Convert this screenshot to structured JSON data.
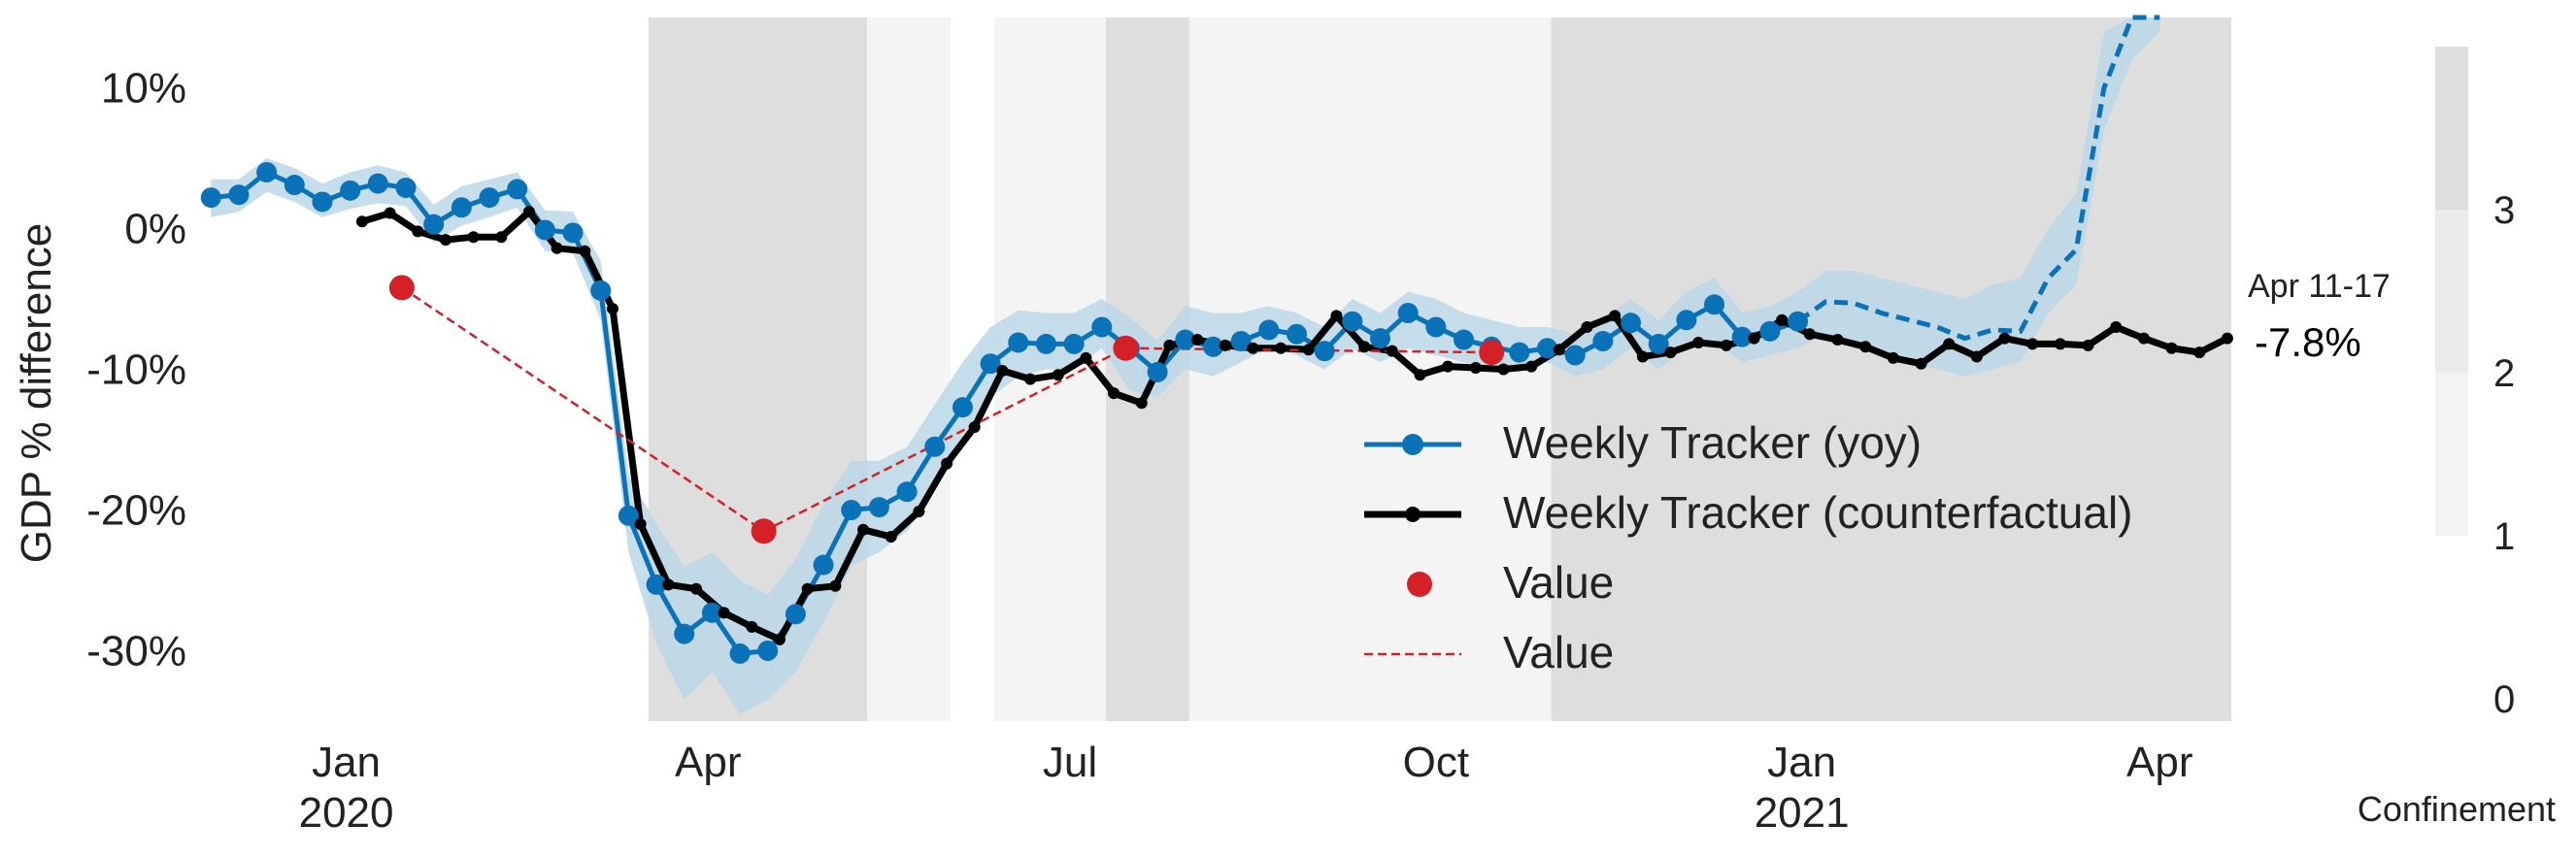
{
  "chart_data": {
    "type": "line",
    "title": "",
    "xlabel": "",
    "ylabel": "GDP % difference",
    "ylim": [
      -35,
      15
    ],
    "xlim": [
      "2019-11-25",
      "2021-04-19"
    ],
    "y_ticks": [
      {
        "value": 10,
        "label": "10%"
      },
      {
        "value": 0,
        "label": "0%"
      },
      {
        "value": -10,
        "label": "-10%"
      },
      {
        "value": -20,
        "label": "-20%"
      },
      {
        "value": -30,
        "label": "-30%"
      }
    ],
    "x_ticks": [
      {
        "date": "2020-01-01",
        "label": "Jan",
        "year": "2020"
      },
      {
        "date": "2020-04-01",
        "label": "Apr",
        "year": ""
      },
      {
        "date": "2020-07-01",
        "label": "Jul",
        "year": ""
      },
      {
        "date": "2020-10-01",
        "label": "Oct",
        "year": ""
      },
      {
        "date": "2021-01-01",
        "label": "Jan",
        "year": "2021"
      },
      {
        "date": "2021-04-01",
        "label": "Apr",
        "year": ""
      }
    ],
    "grid": false,
    "legend": {
      "position": "lower-right",
      "entries": [
        {
          "label": "Weekly Tracker (yoy)",
          "style": "line-marker",
          "color": "#0a72b8"
        },
        {
          "label": "Weekly Tracker (counterfactual)",
          "style": "line-marker",
          "color": "#000000"
        },
        {
          "label": "Value",
          "style": "marker",
          "color": "#d62028"
        },
        {
          "label": "Value",
          "style": "dashed-line",
          "color": "#d62028"
        }
      ]
    },
    "annotation": {
      "date_label": "Apr 11-17",
      "value_label": "-7.8%"
    },
    "confinement": {
      "label": "Confinement",
      "ticks": [
        {
          "value": 0,
          "label": "0"
        },
        {
          "value": 1,
          "label": "1"
        },
        {
          "value": 2,
          "label": "2"
        },
        {
          "value": 3,
          "label": "3"
        }
      ],
      "levels": [
        {
          "from": 1,
          "to": 2,
          "color": "#f4f4f4"
        },
        {
          "from": 2,
          "to": 3,
          "color": "#eaeaea"
        },
        {
          "from": 3,
          "to": 4,
          "color": "#dedede"
        }
      ],
      "periods": [
        {
          "start": "2020-03-17",
          "end": "2020-05-11",
          "level": 3
        },
        {
          "start": "2020-05-11",
          "end": "2020-06-01",
          "level": 1
        },
        {
          "start": "2020-06-12",
          "end": "2020-07-10",
          "level": 1
        },
        {
          "start": "2020-07-10",
          "end": "2020-07-31",
          "level": 3
        },
        {
          "start": "2020-07-31",
          "end": "2020-10-30",
          "level": 1
        },
        {
          "start": "2020-10-30",
          "end": "2021-04-19",
          "level": 3
        }
      ]
    },
    "series": [
      {
        "name": "Weekly Tracker (yoy)",
        "color": "#0a72b8",
        "x": [
          "2019-11-28",
          "2019-12-05",
          "2019-12-12",
          "2019-12-19",
          "2019-12-26",
          "2020-01-02",
          "2020-01-09",
          "2020-01-16",
          "2020-01-23",
          "2020-01-30",
          "2020-02-06",
          "2020-02-13",
          "2020-02-20",
          "2020-02-27",
          "2020-03-05",
          "2020-03-12",
          "2020-03-19",
          "2020-03-26",
          "2020-04-02",
          "2020-04-09",
          "2020-04-16",
          "2020-04-23",
          "2020-04-30",
          "2020-05-07",
          "2020-05-14",
          "2020-05-21",
          "2020-05-28",
          "2020-06-04",
          "2020-06-11",
          "2020-06-18",
          "2020-06-25",
          "2020-07-02",
          "2020-07-09",
          "2020-07-16",
          "2020-07-23",
          "2020-07-30",
          "2020-08-06",
          "2020-08-13",
          "2020-08-20",
          "2020-08-27",
          "2020-09-03",
          "2020-09-10",
          "2020-09-17",
          "2020-09-24",
          "2020-10-01",
          "2020-10-08",
          "2020-10-15",
          "2020-10-22",
          "2020-10-29",
          "2020-11-05",
          "2020-11-12",
          "2020-11-19",
          "2020-11-26",
          "2020-12-03",
          "2020-12-10",
          "2020-12-17",
          "2020-12-24",
          "2020-12-31"
        ],
        "values": [
          2.2,
          2.4,
          4.0,
          3.1,
          1.9,
          2.7,
          3.2,
          2.9,
          0.3,
          1.5,
          2.2,
          2.8,
          -0.1,
          -0.3,
          -4.4,
          -20.4,
          -25.3,
          -28.8,
          -27.3,
          -30.2,
          -30.0,
          -27.4,
          -23.9,
          -20.0,
          -19.8,
          -18.7,
          -15.5,
          -12.7,
          -9.6,
          -8.1,
          -8.2,
          -8.2,
          -7.0,
          -8.5,
          -10.2,
          -7.9,
          -8.4,
          -8.0,
          -7.2,
          -7.5,
          -8.7,
          -6.6,
          -7.8,
          -6.0,
          -7.0,
          -7.9,
          -8.4,
          -8.8,
          -8.5,
          -9.0,
          -8.0,
          -6.7,
          -8.2,
          -6.5,
          -5.4,
          -7.7,
          -7.3,
          -6.6
        ],
        "lower": [
          0.8,
          1.2,
          2.6,
          1.9,
          0.8,
          1.4,
          1.8,
          1.6,
          -1.0,
          0.2,
          0.8,
          1.5,
          -1.6,
          -1.7,
          -6.5,
          -23.0,
          -29.5,
          -33.5,
          -31.5,
          -34.5,
          -33.5,
          -31.5,
          -28.0,
          -24.0,
          -23.0,
          -21.5,
          -18.5,
          -15.5,
          -12.0,
          -10.5,
          -10.0,
          -10.0,
          -8.5,
          -11.5,
          -12.0,
          -10.0,
          -10.5,
          -9.5,
          -8.5,
          -9.0,
          -10.0,
          -8.5,
          -9.5,
          -8.5,
          -9.0,
          -9.5,
          -10.0,
          -10.0,
          -9.5,
          -10.5,
          -10.0,
          -8.5,
          -10.0,
          -8.5,
          -8.0,
          -9.5,
          -9.0,
          -8.5
        ],
        "upper": [
          3.5,
          3.5,
          5.0,
          4.3,
          3.2,
          4.0,
          4.5,
          4.0,
          1.7,
          3.0,
          3.5,
          4.0,
          1.3,
          1.2,
          -2.3,
          -17.5,
          -21.0,
          -24.0,
          -23.0,
          -25.0,
          -26.0,
          -23.5,
          -19.5,
          -16.5,
          -16.5,
          -15.5,
          -12.5,
          -9.5,
          -7.0,
          -5.8,
          -6.0,
          -6.0,
          -5.0,
          -6.3,
          -8.0,
          -5.5,
          -6.0,
          -6.0,
          -5.5,
          -6.0,
          -7.0,
          -5.0,
          -6.0,
          -4.5,
          -5.0,
          -6.0,
          -6.5,
          -7.0,
          -7.0,
          -7.5,
          -6.5,
          -5.0,
          -6.5,
          -4.5,
          -3.5,
          -6.0,
          -5.5,
          -4.5
        ]
      },
      {
        "name": "Weekly Tracker (yoy) forecast",
        "color": "#0a72b8",
        "style": "dashed",
        "x": [
          "2020-12-31",
          "2021-01-07",
          "2021-01-14",
          "2021-01-21",
          "2021-01-28",
          "2021-02-04",
          "2021-02-11",
          "2021-02-18",
          "2021-02-25",
          "2021-03-04",
          "2021-03-11",
          "2021-03-18",
          "2021-03-25",
          "2021-04-01"
        ],
        "values": [
          -6.6,
          -5.2,
          -5.3,
          -6.0,
          -6.5,
          -7.0,
          -7.8,
          -7.2,
          -7.3,
          -3.5,
          -1.5,
          10.0,
          15.8,
          16.0
        ],
        "lower": [
          -8.5,
          -7.5,
          -8.0,
          -8.5,
          -9.5,
          -10.0,
          -10.5,
          -10.0,
          -9.5,
          -6.0,
          -4.0,
          7.0,
          12.0,
          14.0
        ],
        "upper": [
          -4.5,
          -3.0,
          -3.0,
          -3.5,
          -4.0,
          -4.5,
          -5.0,
          -4.0,
          -3.5,
          0.0,
          2.5,
          14.0,
          16.0,
          16.0
        ]
      },
      {
        "name": "Weekly Tracker (counterfactual)",
        "color": "#000000",
        "x": [
          "2020-01-05",
          "2020-01-12",
          "2020-01-19",
          "2020-01-26",
          "2020-02-02",
          "2020-02-09",
          "2020-02-16",
          "2020-02-23",
          "2020-03-01",
          "2020-03-08",
          "2020-03-15",
          "2020-03-22",
          "2020-03-29",
          "2020-04-05",
          "2020-04-12",
          "2020-04-19",
          "2020-04-26",
          "2020-05-03",
          "2020-05-10",
          "2020-05-17",
          "2020-05-24",
          "2020-05-31",
          "2020-06-07",
          "2020-06-14",
          "2020-06-21",
          "2020-06-28",
          "2020-07-05",
          "2020-07-12",
          "2020-07-19",
          "2020-07-26",
          "2020-08-02",
          "2020-08-09",
          "2020-08-16",
          "2020-08-23",
          "2020-08-30",
          "2020-09-06",
          "2020-09-13",
          "2020-09-20",
          "2020-09-27",
          "2020-10-04",
          "2020-10-11",
          "2020-10-18",
          "2020-10-25",
          "2020-11-01",
          "2020-11-08",
          "2020-11-15",
          "2020-11-22",
          "2020-11-29",
          "2020-12-06",
          "2020-12-13",
          "2020-12-20",
          "2020-12-27",
          "2021-01-03",
          "2021-01-10",
          "2021-01-17",
          "2021-01-24",
          "2021-01-31",
          "2021-02-07",
          "2021-02-14",
          "2021-02-21",
          "2021-02-28",
          "2021-03-07",
          "2021-03-14",
          "2021-03-21",
          "2021-03-28",
          "2021-04-04",
          "2021-04-11",
          "2021-04-18"
        ],
        "values": [
          0.5,
          1.1,
          -0.2,
          -0.8,
          -0.6,
          -0.6,
          1.2,
          -1.4,
          -1.6,
          -5.7,
          -21.0,
          -25.3,
          -25.6,
          -27.3,
          -28.3,
          -29.2,
          -25.6,
          -25.4,
          -21.4,
          -21.9,
          -20.1,
          -16.7,
          -14.1,
          -10.1,
          -10.7,
          -10.4,
          -9.2,
          -11.7,
          -12.4,
          -8.3,
          -7.9,
          -8.3,
          -8.5,
          -8.5,
          -8.6,
          -6.2,
          -8.4,
          -8.7,
          -10.4,
          -9.8,
          -9.9,
          -10.0,
          -9.8,
          -8.6,
          -7.0,
          -6.2,
          -9.1,
          -8.8,
          -8.1,
          -8.3,
          -7.8,
          -6.5,
          -7.5,
          -7.9,
          -8.4,
          -9.2,
          -9.6,
          -8.2,
          -9.1,
          -7.8,
          -8.2,
          -8.2,
          -8.3,
          -7.0,
          -7.8,
          -8.5,
          -8.8,
          -7.8
        ]
      },
      {
        "name": "Value",
        "color": "#d62028",
        "style": "dashed-marker",
        "x": [
          "2020-01-15",
          "2020-04-15",
          "2020-07-15",
          "2020-10-15"
        ],
        "values": [
          -4.2,
          -21.5,
          -8.5,
          -8.8
        ]
      }
    ]
  }
}
